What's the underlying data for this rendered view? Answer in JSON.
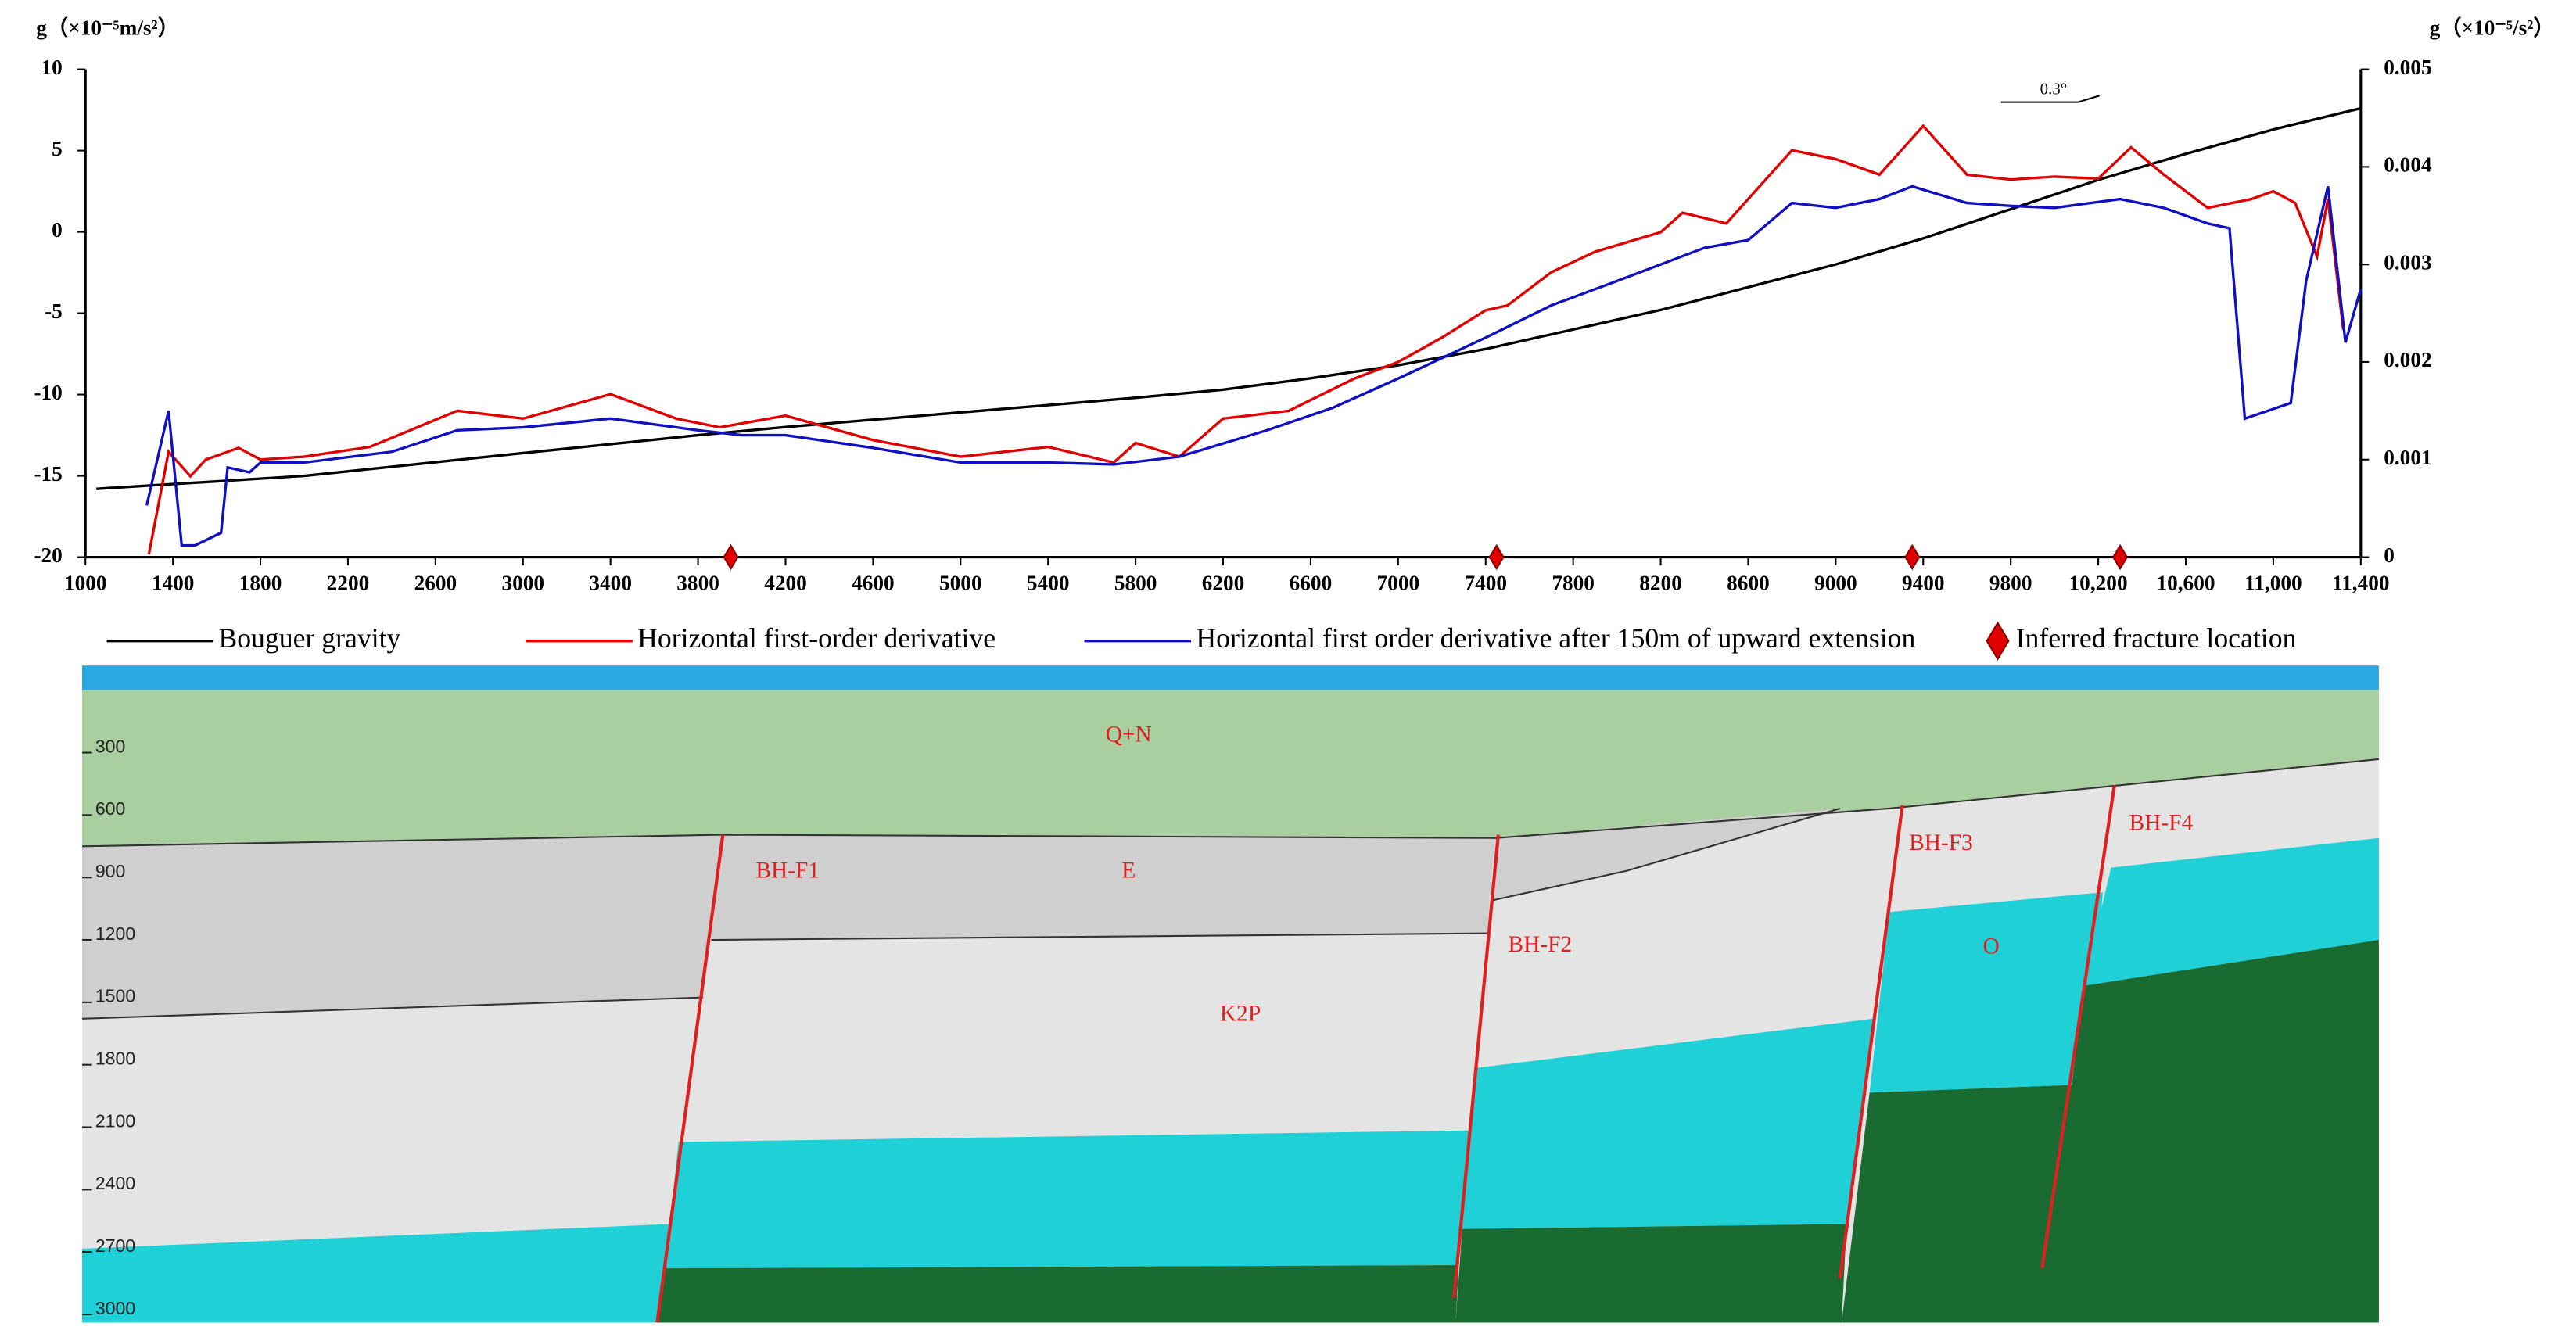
{
  "chart_data": {
    "type": "line",
    "ylabel": "g（×10⁻⁵m/s²）",
    "y2label": "g（×10⁻⁵/s²）",
    "annotation": "0.3°",
    "xlim": [
      1000,
      11400
    ],
    "xticks": [
      1000,
      1400,
      1800,
      2200,
      2600,
      3000,
      3400,
      3800,
      4200,
      4600,
      5000,
      5400,
      5800,
      6200,
      6600,
      7000,
      7400,
      7800,
      8200,
      8600,
      9000,
      9400,
      9800,
      {
        "value": 10200,
        "label": "10,200"
      },
      {
        "value": 10600,
        "label": "10,600"
      },
      {
        "value": 11000,
        "label": "11,000"
      },
      {
        "value": 11400,
        "label": "11,400"
      }
    ],
    "ylim": [
      -20,
      10
    ],
    "yticks": [
      -20,
      -15,
      -10,
      -5,
      0,
      5,
      10
    ],
    "y2lim": [
      0,
      0.005
    ],
    "y2ticks": [
      0,
      0.001,
      0.002,
      0.003,
      0.004,
      0.005
    ],
    "series": [
      {
        "name": "Bouguer gravity",
        "color": "#000000",
        "x": [
          1050,
          2000,
          3000,
          3800,
          4200,
          5000,
          5800,
          6200,
          6600,
          7000,
          7400,
          7800,
          8200,
          8600,
          9000,
          9400,
          9800,
          10200,
          10600,
          11000,
          11400
        ],
        "values": [
          -15.8,
          -15,
          -13.6,
          -12.5,
          -12.0,
          -11.1,
          -10.2,
          -9.7,
          -9.0,
          -8.2,
          -7.2,
          -6.0,
          -4.8,
          -3.4,
          -2.0,
          -0.4,
          1.4,
          3.2,
          4.8,
          6.3,
          7.6
        ]
      },
      {
        "name": "Horizontal first-order derivative",
        "color": "#e00000",
        "axis": "y2",
        "x": [
          1290,
          1380,
          1480,
          1550,
          1700,
          1800,
          2000,
          2300,
          2700,
          3000,
          3400,
          3700,
          3900,
          4200,
          4600,
          5000,
          5400,
          5700,
          5800,
          6000,
          6200,
          6500,
          6800,
          7000,
          7200,
          7400,
          7500,
          7700,
          7900,
          8200,
          8300,
          8500,
          8800,
          9000,
          9200,
          9400,
          9600,
          9800,
          10000,
          10200,
          10350,
          10500,
          10700,
          10900,
          11000,
          11100,
          11200,
          11250,
          11320
        ],
        "values": [
          3e-05,
          0.00108,
          0.00083,
          0.001,
          0.00112,
          0.001,
          0.00103,
          0.00113,
          0.0015,
          0.00142,
          0.00167,
          0.00142,
          0.00133,
          0.00145,
          0.0012,
          0.00103,
          0.00113,
          0.00097,
          0.00117,
          0.00103,
          0.00142,
          0.0015,
          0.00183,
          0.002,
          0.00225,
          0.00253,
          0.00258,
          0.00292,
          0.00313,
          0.00333,
          0.00353,
          0.00342,
          0.00417,
          0.00408,
          0.00392,
          0.00442,
          0.00392,
          0.00387,
          0.0039,
          0.00388,
          0.0042,
          0.00392,
          0.00358,
          0.00367,
          0.00375,
          0.00363,
          0.00308,
          0.00367,
          0.00233
        ]
      },
      {
        "name": "Horizontal first order derivative after 150m of upward extension",
        "color": "#1010c0",
        "axis": "y2",
        "x": [
          1280,
          1380,
          1440,
          1500,
          1620,
          1650,
          1750,
          1800,
          2000,
          2400,
          2700,
          3000,
          3400,
          3800,
          4000,
          4200,
          4600,
          5000,
          5400,
          5700,
          6000,
          6400,
          6700,
          7000,
          7400,
          7700,
          8000,
          8400,
          8600,
          8800,
          9000,
          9200,
          9350,
          9600,
          9800,
          10000,
          10300,
          10500,
          10700,
          10800,
          10870,
          11080,
          11150,
          11250,
          11330,
          11400
        ],
        "values": [
          0.00053,
          0.0015,
          0.00012,
          0.00012,
          0.00025,
          0.00092,
          0.00087,
          0.00097,
          0.00097,
          0.00108,
          0.0013,
          0.00133,
          0.00142,
          0.0013,
          0.00125,
          0.00125,
          0.00112,
          0.00097,
          0.00097,
          0.00095,
          0.00103,
          0.0013,
          0.00153,
          0.00183,
          0.00225,
          0.00258,
          0.00283,
          0.00317,
          0.00325,
          0.00363,
          0.00358,
          0.00367,
          0.0038,
          0.00363,
          0.0036,
          0.00358,
          0.00367,
          0.00358,
          0.00342,
          0.00337,
          0.00142,
          0.00158,
          0.00283,
          0.0038,
          0.0022,
          0.00275
        ]
      },
      {
        "name": "Inferred fracture location",
        "color": "#e00000",
        "marker": "diamond",
        "x": [
          3950,
          7450,
          9350,
          10300
        ],
        "values": [
          -20,
          -20,
          -20,
          -20
        ]
      }
    ]
  },
  "section": {
    "depth_lim": [
      0,
      3000
    ],
    "depth_ticks": [
      300,
      600,
      900,
      1200,
      1500,
      1800,
      2100,
      2400,
      2700,
      3000
    ],
    "strata": [
      "Q+N",
      "E",
      "K2P",
      "O"
    ],
    "faults": [
      "BH-F1",
      "BH-F2",
      "BH-F3",
      "BH-F4"
    ]
  }
}
